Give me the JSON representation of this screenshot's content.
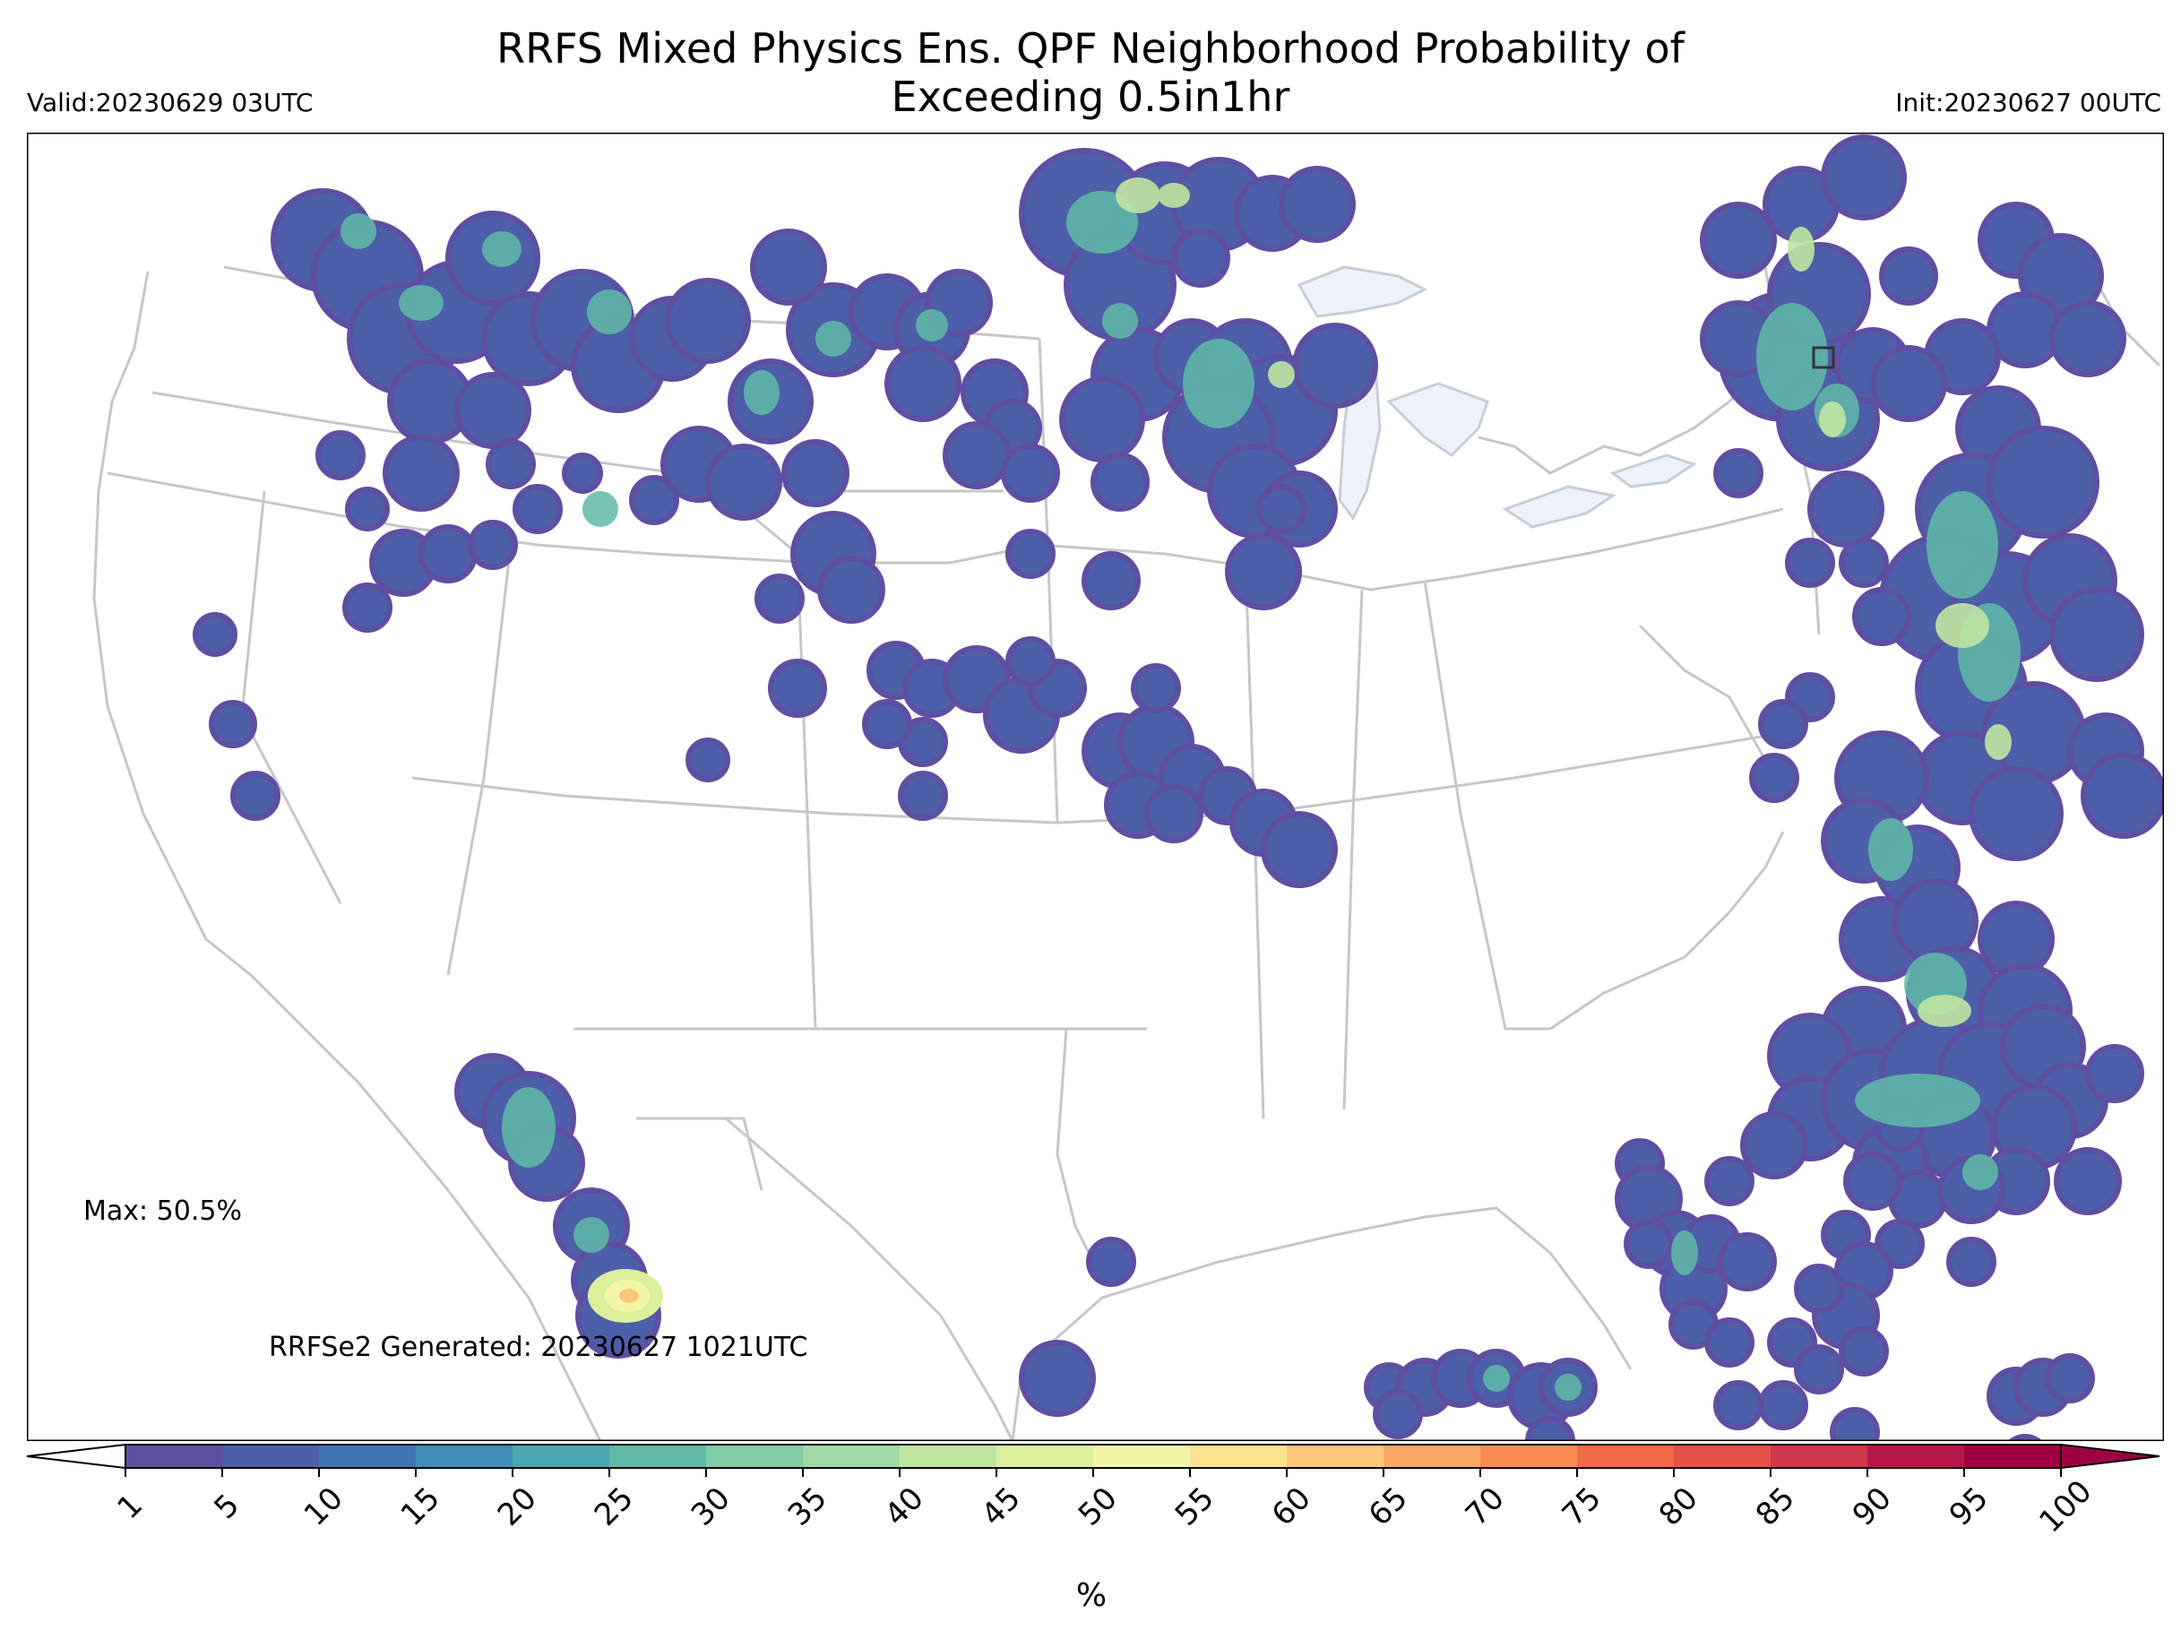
{
  "header": {
    "title_line1": "RRFS Mixed Physics Ens. QPF Neighborhood Probability of",
    "title_line2": "Exceeding 0.5in1hr",
    "valid": "Valid:20230629 03UTC",
    "init": "Init:20230627 00UTC"
  },
  "annotations": {
    "max": "Max: 50.5%",
    "generated": "RRFSe2 Generated: 20230627 1021UTC"
  },
  "colorbar": {
    "unit": "%",
    "ticks": [
      "1",
      "5",
      "10",
      "15",
      "20",
      "25",
      "30",
      "35",
      "40",
      "45",
      "50",
      "55",
      "60",
      "65",
      "70",
      "75",
      "80",
      "85",
      "90",
      "95",
      "100"
    ],
    "colors": [
      "#5e4fa2",
      "#4c5fa8",
      "#3f75b3",
      "#3e8fb9",
      "#4aa7b2",
      "#5fbaa8",
      "#80cca4",
      "#a1d9a4",
      "#c0e5a0",
      "#dcef9a",
      "#f2f7a8",
      "#fbe38f",
      "#fdc877",
      "#fcaa61",
      "#f88d52",
      "#f06c47",
      "#e2514a",
      "#cf384c",
      "#b41947",
      "#9e0142"
    ]
  },
  "map": {
    "region": "CONUS",
    "features": [
      "state-borders",
      "coastlines",
      "great-lakes",
      "probability-contours",
      "box-marker"
    ]
  }
}
